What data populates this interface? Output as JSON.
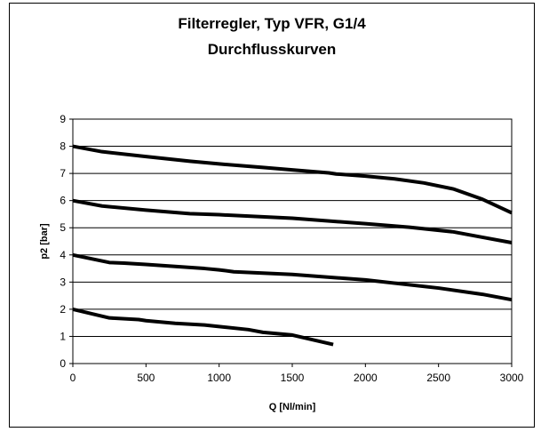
{
  "chart_data": {
    "type": "line",
    "title": "Filterregler, Typ VFR, G1/4",
    "subtitle": "Durchflusskurven",
    "xlabel": "Q [Nl/min]",
    "ylabel": "p2 [bar]",
    "xlim": [
      0,
      3000
    ],
    "ylim": [
      0,
      9
    ],
    "xticks": [
      0,
      500,
      1000,
      1500,
      2000,
      2500,
      3000
    ],
    "yticks": [
      0,
      1,
      2,
      3,
      4,
      5,
      6,
      7,
      8,
      9
    ],
    "grid": true,
    "line_color": "#000000",
    "series": [
      {
        "x": [
          0,
          200,
          500,
          800,
          1000,
          1300,
          1500,
          1750,
          1800,
          2000,
          2200,
          2400,
          2600,
          2800,
          3000
        ],
        "y": [
          8.0,
          7.8,
          7.62,
          7.45,
          7.35,
          7.22,
          7.13,
          7.02,
          6.98,
          6.9,
          6.8,
          6.65,
          6.43,
          6.05,
          5.55
        ]
      },
      {
        "x": [
          0,
          200,
          500,
          800,
          1000,
          1500,
          2000,
          2300,
          2600,
          2800,
          3000
        ],
        "y": [
          6.0,
          5.8,
          5.65,
          5.52,
          5.48,
          5.35,
          5.15,
          5.02,
          4.85,
          4.65,
          4.45
        ]
      },
      {
        "x": [
          0,
          250,
          350,
          500,
          900,
          1000,
          1100,
          1500,
          2000,
          2500,
          2800,
          3000
        ],
        "y": [
          4.0,
          3.72,
          3.7,
          3.65,
          3.5,
          3.45,
          3.38,
          3.28,
          3.08,
          2.78,
          2.55,
          2.35
        ]
      },
      {
        "x": [
          0,
          250,
          450,
          500,
          700,
          900,
          1200,
          1300,
          1500,
          1780
        ],
        "y": [
          2.0,
          1.68,
          1.62,
          1.58,
          1.48,
          1.42,
          1.25,
          1.15,
          1.05,
          0.7
        ]
      }
    ]
  }
}
